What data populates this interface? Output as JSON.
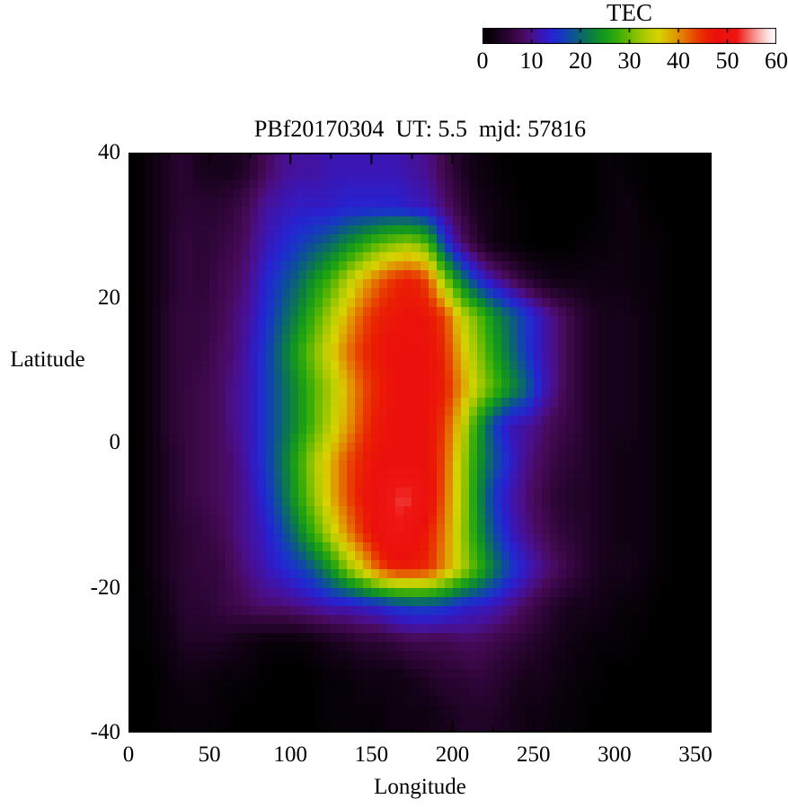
{
  "chart_data": {
    "type": "heatmap",
    "title": "PBf20170304  UT: 5.5  mjd: 57816",
    "xlabel": "Longitude",
    "ylabel": "Latitude",
    "xlim": [
      0,
      360
    ],
    "ylim": [
      -40,
      40
    ],
    "xticks": [
      0,
      50,
      100,
      150,
      200,
      250,
      300,
      350
    ],
    "yticks": [
      40,
      20,
      0,
      -20,
      -40
    ],
    "x_minor_step": 25,
    "y_minor_step": 10,
    "grid_on": false,
    "colorbar": {
      "title": "TEC",
      "min": 0,
      "max": 60,
      "ticks": [
        0,
        10,
        20,
        30,
        40,
        50,
        60
      ],
      "position": "top-right"
    },
    "colormap_stops": [
      [
        0,
        "#000000"
      ],
      [
        3,
        "#16021a"
      ],
      [
        6,
        "#33063e"
      ],
      [
        8,
        "#470a58"
      ],
      [
        10,
        "#4a0f8c"
      ],
      [
        12,
        "#3a16b4"
      ],
      [
        14,
        "#2722d2"
      ],
      [
        16,
        "#1836c4"
      ],
      [
        18,
        "#0d4e9a"
      ],
      [
        20,
        "#0b6670"
      ],
      [
        22,
        "#0c7c46"
      ],
      [
        24,
        "#129224"
      ],
      [
        26,
        "#1fa313"
      ],
      [
        28,
        "#3fae08"
      ],
      [
        30,
        "#6cba00"
      ],
      [
        32,
        "#96c500"
      ],
      [
        34,
        "#bccd00"
      ],
      [
        36,
        "#d6d300"
      ],
      [
        38,
        "#dcb200"
      ],
      [
        40,
        "#e18e00"
      ],
      [
        42,
        "#e56500"
      ],
      [
        44,
        "#e83b00"
      ],
      [
        46,
        "#ea1d04"
      ],
      [
        48,
        "#ec100c"
      ],
      [
        52,
        "#ee1512"
      ],
      [
        54,
        "#f25b55"
      ],
      [
        56,
        "#f79d99"
      ],
      [
        58,
        "#fcd9d7"
      ],
      [
        60,
        "#ffffff"
      ]
    ],
    "grid": {
      "lon_centers_start": 5,
      "lon_step": 10,
      "lat_centers_start": 37.5,
      "lat_step": -5,
      "values": [
        [
          0,
          2,
          4,
          5,
          3,
          3,
          3,
          5,
          8,
          10,
          11,
          11,
          12,
          12,
          12,
          12,
          12,
          11,
          10,
          7,
          4,
          2,
          1,
          0,
          0,
          0,
          0,
          0,
          0,
          1,
          1,
          0,
          0,
          0,
          0,
          0
        ],
        [
          0,
          2,
          4,
          5,
          5,
          5,
          6,
          8,
          11,
          12,
          13,
          13,
          13,
          14,
          14,
          14,
          14,
          13,
          12,
          9,
          6,
          3,
          2,
          1,
          0,
          0,
          0,
          0,
          0,
          1,
          2,
          1,
          0,
          0,
          0,
          0
        ],
        [
          0,
          2,
          4,
          6,
          5,
          6,
          7,
          9,
          12,
          14,
          16,
          18,
          20,
          23,
          26,
          29,
          31,
          32,
          28,
          16,
          9,
          5,
          2,
          1,
          0,
          0,
          0,
          0,
          1,
          1,
          2,
          1,
          1,
          0,
          0,
          0
        ],
        [
          0,
          2,
          4,
          6,
          5,
          7,
          8,
          10,
          14,
          17,
          20,
          24,
          28,
          33,
          38,
          42,
          45,
          46,
          43,
          31,
          22,
          15,
          11,
          8,
          5,
          3,
          2,
          2,
          2,
          2,
          2,
          1,
          1,
          0,
          0,
          0
        ],
        [
          0,
          2,
          5,
          6,
          6,
          7,
          9,
          11,
          15,
          19,
          23,
          28,
          33,
          38,
          43,
          46,
          47,
          48,
          47,
          44,
          35,
          30,
          24,
          20,
          16,
          12,
          9,
          6,
          4,
          3,
          3,
          2,
          1,
          0,
          0,
          0
        ],
        [
          0,
          2,
          5,
          6,
          6,
          8,
          9,
          12,
          16,
          21,
          26,
          31,
          36,
          41,
          45,
          47,
          48,
          48,
          48,
          45,
          38,
          32,
          26,
          21,
          16,
          12,
          9,
          6,
          4,
          3,
          3,
          2,
          1,
          0,
          0,
          0
        ],
        [
          0,
          2,
          5,
          6,
          7,
          8,
          10,
          12,
          16,
          20,
          24,
          29,
          33,
          38,
          43,
          46,
          48,
          48,
          48,
          46,
          40,
          34,
          29,
          24,
          20,
          13,
          9,
          6,
          4,
          3,
          3,
          2,
          1,
          0,
          0,
          0
        ],
        [
          0,
          2,
          5,
          6,
          7,
          8,
          10,
          12,
          16,
          20,
          24,
          29,
          34,
          39,
          44,
          47,
          48,
          48,
          48,
          44,
          36,
          26,
          17,
          12,
          11,
          9,
          7,
          6,
          4,
          3,
          3,
          2,
          1,
          0,
          0,
          0
        ],
        [
          0,
          2,
          4,
          6,
          7,
          8,
          9,
          12,
          16,
          21,
          27,
          33,
          38,
          43,
          46,
          48,
          48,
          48,
          48,
          43,
          34,
          25,
          19,
          14,
          10,
          8,
          6,
          5,
          4,
          3,
          2,
          2,
          1,
          0,
          0,
          0
        ],
        [
          0,
          2,
          4,
          6,
          7,
          8,
          9,
          11,
          15,
          20,
          26,
          32,
          38,
          43,
          47,
          50,
          53,
          53,
          49,
          42,
          34,
          24,
          16,
          12,
          9,
          7,
          5,
          4,
          4,
          3,
          2,
          2,
          1,
          0,
          0,
          0
        ],
        [
          0,
          2,
          4,
          5,
          6,
          7,
          9,
          11,
          13,
          17,
          22,
          28,
          34,
          40,
          45,
          49,
          52,
          50,
          46,
          41,
          33,
          25,
          18,
          13,
          10,
          8,
          6,
          5,
          4,
          3,
          2,
          2,
          1,
          0,
          0,
          0
        ],
        [
          0,
          2,
          4,
          5,
          6,
          6,
          8,
          10,
          12,
          14,
          16,
          19,
          24,
          31,
          37,
          43,
          46,
          46,
          45,
          40,
          34,
          28,
          22,
          17,
          13,
          10,
          8,
          6,
          4,
          3,
          3,
          2,
          1,
          0,
          0,
          0
        ],
        [
          0,
          1,
          3,
          5,
          5,
          6,
          7,
          8,
          9,
          9,
          10,
          11,
          12,
          12,
          13,
          14,
          16,
          17,
          17,
          16,
          14,
          13,
          12,
          10,
          8,
          6,
          4,
          3,
          3,
          2,
          1,
          1,
          0,
          0,
          0,
          0
        ],
        [
          0,
          1,
          2,
          4,
          4,
          4,
          3,
          2,
          1,
          1,
          1,
          2,
          3,
          4,
          5,
          5,
          6,
          7,
          7,
          7,
          8,
          8,
          7,
          6,
          5,
          4,
          3,
          2,
          1,
          1,
          1,
          0,
          0,
          0,
          0,
          0
        ],
        [
          0,
          0,
          1,
          2,
          2,
          1,
          1,
          1,
          0,
          0,
          0,
          0,
          1,
          1,
          2,
          2,
          2,
          3,
          4,
          5,
          5,
          6,
          5,
          4,
          3,
          3,
          2,
          1,
          1,
          0,
          0,
          0,
          0,
          0,
          0,
          0
        ],
        [
          0,
          0,
          1,
          1,
          1,
          1,
          0,
          0,
          0,
          0,
          0,
          0,
          1,
          1,
          1,
          1,
          2,
          2,
          2,
          3,
          4,
          4,
          4,
          3,
          2,
          2,
          1,
          1,
          0,
          0,
          0,
          0,
          0,
          0,
          0,
          0
        ]
      ]
    }
  }
}
